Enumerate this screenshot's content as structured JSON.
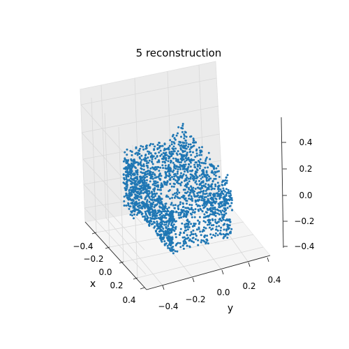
{
  "chart_data": {
    "type": "scatter",
    "projection": "3d",
    "title": "5 reconstruction",
    "xlabel": "x",
    "ylabel": "y",
    "zlabel": "",
    "xlim": [
      -0.5,
      0.5
    ],
    "ylim": [
      -0.5,
      0.5
    ],
    "zlim": [
      -0.45,
      0.5
    ],
    "xticks": [
      "−0.4",
      "−0.2",
      "0.0",
      "0.2",
      "0.4"
    ],
    "yticks": [
      "−0.4",
      "−0.2",
      "0.0",
      "0.2",
      "0.4"
    ],
    "zticks": [
      "−0.4",
      "−0.2",
      "0.0",
      "0.2",
      "0.4"
    ],
    "grid": true,
    "point_color": "#1f77b4",
    "point_count": 2048,
    "shape": "sofa-like box point cloud",
    "x_extent": [
      -0.35,
      0.35
    ],
    "y_extent": [
      -0.2,
      0.2
    ],
    "z_extent": [
      -0.2,
      0.25
    ]
  }
}
